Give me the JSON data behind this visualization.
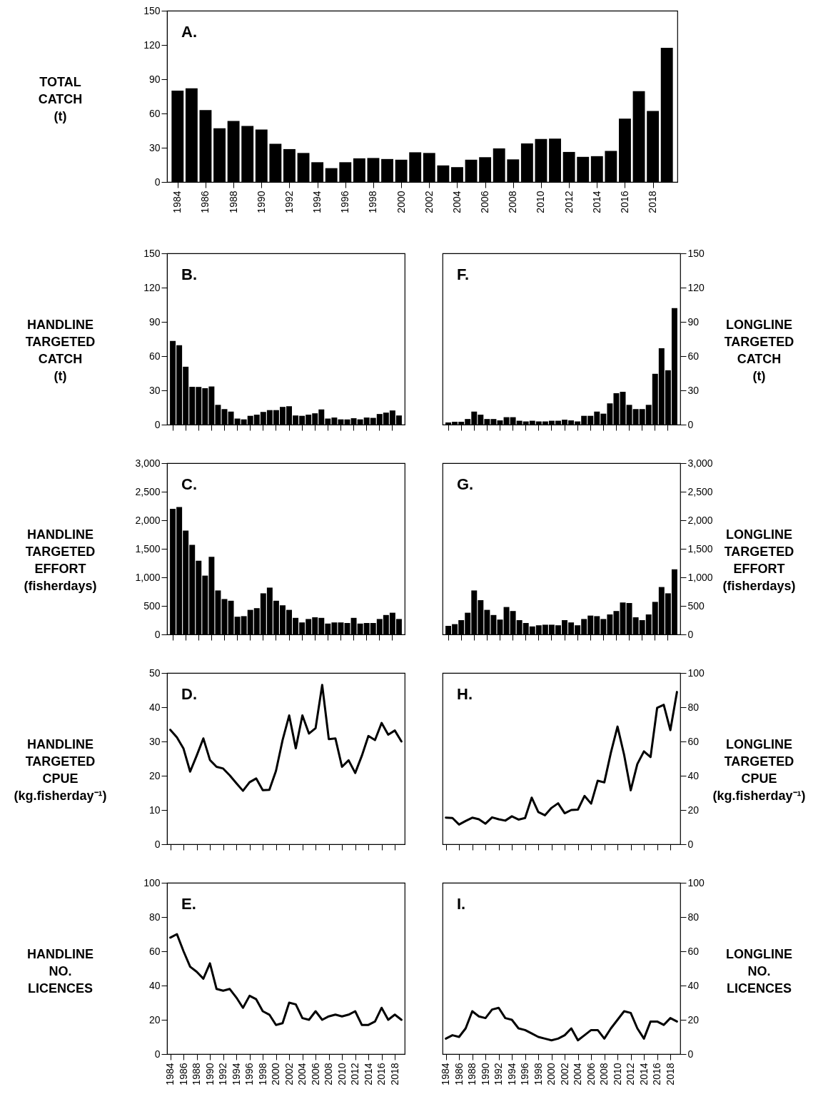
{
  "chart_data": [
    {
      "type": "bar",
      "ylabel": "TOTAL CATCH (t)",
      "annotations": [
        "A."
      ],
      "x": [
        1984,
        1985,
        1986,
        1987,
        1988,
        1989,
        1990,
        1991,
        1992,
        1993,
        1994,
        1995,
        1996,
        1997,
        1998,
        1999,
        2000,
        2001,
        2002,
        2003,
        2004,
        2005,
        2006,
        2007,
        2008,
        2009,
        2010,
        2011,
        2012,
        2013,
        2014,
        2015,
        2016,
        2017,
        2018,
        2019
      ],
      "xlim": [
        1983.5,
        2019.5
      ],
      "xticks": [
        1984,
        1986,
        1988,
        1990,
        1992,
        1994,
        1996,
        1998,
        2000,
        2002,
        2004,
        2006,
        2008,
        2010,
        2012,
        2014,
        2016,
        2018
      ],
      "ylim": [
        0,
        150
      ],
      "yticks": [
        0,
        30,
        60,
        90,
        120,
        150
      ],
      "series": [
        {
          "color": "#000000",
          "values": [
            80,
            82,
            63,
            47,
            53.5,
            49,
            46,
            33.4,
            28.8,
            25.4,
            17.3,
            12.1,
            17.3,
            20.7,
            21,
            20.1,
            19.5,
            26,
            25.4,
            14.5,
            13,
            19.5,
            21.7,
            29.4,
            19.8,
            33.7,
            37.7,
            38,
            26.3,
            22,
            22.6,
            27.2,
            55.4,
            79.5,
            62.2,
            117.5
          ]
        }
      ]
    },
    {
      "type": "bar",
      "ylabel": "HANDLINE TARGETED CATCH (t)",
      "annotations": [
        "B."
      ],
      "tick_labels": "y",
      "categories": [
        null,
        null,
        null,
        null,
        null,
        null,
        null,
        null,
        null,
        null,
        null,
        null,
        null,
        null,
        null,
        null,
        null,
        null,
        null,
        null,
        null,
        null,
        null,
        null,
        null,
        null,
        null,
        null,
        null,
        null,
        null,
        null,
        null,
        null,
        null,
        null
      ],
      "ylim": [
        0,
        150
      ],
      "yticks": [
        0,
        30,
        60,
        90,
        120,
        150
      ],
      "series": [
        {
          "color": "#000000",
          "values": [
            73.3,
            69.6,
            50.7,
            33.1,
            33,
            31.9,
            33.4,
            17.3,
            13.6,
            11.4,
            5.3,
            4.6,
            7.7,
            8.7,
            11.1,
            12.7,
            12.7,
            15.5,
            16.1,
            8,
            7.7,
            8.7,
            9.9,
            13.3,
            5.3,
            6.2,
            4.6,
            4.6,
            5.6,
            4.6,
            6.2,
            5.9,
            9.3,
            10.5,
            12.4,
            8
          ]
        }
      ]
    },
    {
      "type": "bar",
      "ylabel": "LONGLINE TARGETED CATCH (t)",
      "annotations": [
        "F."
      ],
      "tick_labels": "y",
      "categories": [
        null,
        null,
        null,
        null,
        null,
        null,
        null,
        null,
        null,
        null,
        null,
        null,
        null,
        null,
        null,
        null,
        null,
        null,
        null,
        null,
        null,
        null,
        null,
        null,
        null,
        null,
        null,
        null,
        null,
        null,
        null,
        null,
        null,
        null,
        null,
        null
      ],
      "ylim": [
        0,
        150
      ],
      "yticks": [
        0,
        30,
        60,
        90,
        120,
        150
      ],
      "series": [
        {
          "color": "#000000",
          "values": [
            1.9,
            2.5,
            2.5,
            4.9,
            11.4,
            8.7,
            4.9,
            4.9,
            3.7,
            6.5,
            6.5,
            3.4,
            2.8,
            3.4,
            2.8,
            2.8,
            3.4,
            3.4,
            4.3,
            3.7,
            2.8,
            7.7,
            7.7,
            11.4,
            9.6,
            18.6,
            27.5,
            28.8,
            17.3,
            13.6,
            13.6,
            17.3,
            44.5,
            66.8,
            47.6,
            102
          ]
        }
      ]
    },
    {
      "type": "bar",
      "ylabel": "HANDLINE TARGETED EFFORT (fisherdays)",
      "annotations": [
        "C."
      ],
      "tick_labels": "y",
      "categories": [
        null,
        null,
        null,
        null,
        null,
        null,
        null,
        null,
        null,
        null,
        null,
        null,
        null,
        null,
        null,
        null,
        null,
        null,
        null,
        null,
        null,
        null,
        null,
        null,
        null,
        null,
        null,
        null,
        null,
        null,
        null,
        null,
        null,
        null,
        null,
        null
      ],
      "ylim": [
        0,
        3000
      ],
      "yticks": [
        0,
        500,
        {
          "value": 1000,
          "label": "1,000"
        },
        {
          "value": 1500,
          "label": "1,500"
        },
        {
          "value": 2000,
          "label": "2,000"
        },
        {
          "value": 2500,
          "label": "2,500"
        },
        {
          "value": 3000,
          "label": "3,000"
        }
      ],
      "series": [
        {
          "color": "#000000",
          "values": [
            2200,
            2230,
            1820,
            1570,
            1290,
            1030,
            1360,
            770,
            620,
            590,
            310,
            320,
            430,
            460,
            720,
            820,
            590,
            510,
            430,
            290,
            210,
            270,
            300,
            290,
            190,
            210,
            210,
            200,
            290,
            190,
            200,
            200,
            270,
            340,
            380,
            270
          ]
        }
      ]
    },
    {
      "type": "bar",
      "ylabel": "LONGLINE TARGETED EFFORT (fisherdays)",
      "annotations": [
        "G."
      ],
      "tick_labels": "y",
      "categories": [
        null,
        null,
        null,
        null,
        null,
        null,
        null,
        null,
        null,
        null,
        null,
        null,
        null,
        null,
        null,
        null,
        null,
        null,
        null,
        null,
        null,
        null,
        null,
        null,
        null,
        null,
        null,
        null,
        null,
        null,
        null,
        null,
        null,
        null,
        null,
        null
      ],
      "ylim": [
        0,
        3000
      ],
      "yticks": [
        0,
        500,
        {
          "value": 1000,
          "label": "1,000"
        },
        {
          "value": 1500,
          "label": "1,500"
        },
        {
          "value": 2000,
          "label": "2,000"
        },
        {
          "value": 2500,
          "label": "2,500"
        },
        {
          "value": 3000,
          "label": "3,000"
        }
      ],
      "series": [
        {
          "color": "#000000",
          "values": [
            150,
            180,
            250,
            380,
            770,
            600,
            430,
            340,
            260,
            480,
            410,
            250,
            200,
            140,
            160,
            170,
            170,
            160,
            250,
            210,
            160,
            270,
            330,
            320,
            270,
            350,
            410,
            560,
            550,
            300,
            250,
            350,
            570,
            830,
            720,
            1140
          ]
        }
      ]
    },
    {
      "type": "line",
      "ylabel": "HANDLINE TARGETED CPUE (kg.fisherday⁻¹)",
      "annotations": [
        "D."
      ],
      "tick_labels": "y",
      "categories": [
        null,
        null,
        null,
        null,
        null,
        null,
        null,
        null,
        null,
        null,
        null,
        null,
        null,
        null,
        null,
        null,
        null,
        null,
        null,
        null,
        null,
        null,
        null,
        null,
        null,
        null,
        null,
        null,
        null,
        null,
        null,
        null,
        null,
        null,
        null,
        null
      ],
      "ylim": [
        0,
        50
      ],
      "yticks": [
        0,
        10,
        20,
        30,
        40,
        50
      ],
      "series": [
        {
          "color": "#000000",
          "values": [
            33.4,
            31.2,
            27.9,
            21.2,
            25.9,
            30.9,
            24.6,
            22.6,
            22.1,
            20.1,
            17.8,
            15.6,
            18.1,
            19.2,
            15.8,
            15.9,
            21.4,
            30.4,
            37.6,
            28,
            37.6,
            32.3,
            33.9,
            46.5,
            30.7,
            30.9,
            22.6,
            24.5,
            20.8,
            25.8,
            31.6,
            30.4,
            35.4,
            32,
            33.2,
            30
          ]
        }
      ]
    },
    {
      "type": "line",
      "ylabel": "LONGLINE TARGETED CPUE (kg.fisherday⁻¹)",
      "annotations": [
        "H."
      ],
      "tick_labels": "y",
      "categories": [
        null,
        null,
        null,
        null,
        null,
        null,
        null,
        null,
        null,
        null,
        null,
        null,
        null,
        null,
        null,
        null,
        null,
        null,
        null,
        null,
        null,
        null,
        null,
        null,
        null,
        null,
        null,
        null,
        null,
        null,
        null,
        null,
        null,
        null,
        null,
        null
      ],
      "ylim": [
        0,
        100
      ],
      "yticks": [
        0,
        20,
        40,
        60,
        80,
        100
      ],
      "series": [
        {
          "color": "#000000",
          "values": [
            15.5,
            15.3,
            11.5,
            13.6,
            15.5,
            14.6,
            12,
            15.7,
            14.6,
            13.8,
            16.3,
            14.4,
            15.3,
            27.2,
            18.8,
            16.9,
            21.2,
            23.9,
            18.1,
            20,
            20.2,
            28.2,
            23.7,
            37.1,
            36.1,
            53.6,
            68.7,
            52.2,
            31.5,
            46.8,
            54.2,
            50.9,
            79.6,
            81.4,
            66.6,
            88.9
          ]
        }
      ]
    },
    {
      "type": "line",
      "ylabel": "HANDLINE NO. LICENCES",
      "annotations": [
        "E."
      ],
      "x": [
        1984,
        1985,
        1986,
        1987,
        1988,
        1989,
        1990,
        1991,
        1992,
        1993,
        1994,
        1995,
        1996,
        1997,
        1998,
        1999,
        2000,
        2001,
        2002,
        2003,
        2004,
        2005,
        2006,
        2007,
        2008,
        2009,
        2010,
        2011,
        2012,
        2013,
        2014,
        2015,
        2016,
        2017,
        2018,
        2019
      ],
      "xlim": [
        1983.5,
        2019.5
      ],
      "xticks": [
        1984,
        1986,
        1988,
        1990,
        1992,
        1994,
        1996,
        1998,
        2000,
        2002,
        2004,
        2006,
        2008,
        2010,
        2012,
        2014,
        2016,
        2018
      ],
      "ylim": [
        0,
        100
      ],
      "yticks": [
        0,
        20,
        40,
        60,
        80,
        100
      ],
      "series": [
        {
          "color": "#000000",
          "values": [
            68,
            70,
            60,
            51,
            48,
            44,
            53,
            38,
            37,
            38,
            33,
            27,
            34,
            32,
            25,
            23,
            17,
            18,
            30,
            29,
            21,
            20,
            25,
            20,
            22,
            23,
            22,
            23,
            25,
            17,
            17,
            19,
            27,
            20,
            23,
            20
          ]
        }
      ]
    },
    {
      "type": "line",
      "ylabel": "LONGLINE NO. LICENCES",
      "annotations": [
        "I."
      ],
      "x": [
        1984,
        1985,
        1986,
        1987,
        1988,
        1989,
        1990,
        1991,
        1992,
        1993,
        1994,
        1995,
        1996,
        1997,
        1998,
        1999,
        2000,
        2001,
        2002,
        2003,
        2004,
        2005,
        2006,
        2007,
        2008,
        2009,
        2010,
        2011,
        2012,
        2013,
        2014,
        2015,
        2016,
        2017,
        2018,
        2019
      ],
      "xlim": [
        1983.5,
        2019.5
      ],
      "xticks": [
        1984,
        1986,
        1988,
        1990,
        1992,
        1994,
        1996,
        1998,
        2000,
        2002,
        2004,
        2006,
        2008,
        2010,
        2012,
        2014,
        2016,
        2018
      ],
      "ylim": [
        0,
        100
      ],
      "yticks": [
        0,
        20,
        40,
        60,
        80,
        100
      ],
      "series": [
        {
          "color": "#000000",
          "values": [
            9,
            11,
            10,
            15,
            25,
            22,
            21,
            26,
            27,
            21,
            20,
            15,
            14,
            12,
            10,
            9,
            8,
            9,
            11,
            15,
            8,
            11,
            14,
            14,
            9,
            15,
            20,
            25,
            24,
            15,
            9,
            19,
            19,
            17,
            21,
            19
          ]
        }
      ]
    }
  ]
}
